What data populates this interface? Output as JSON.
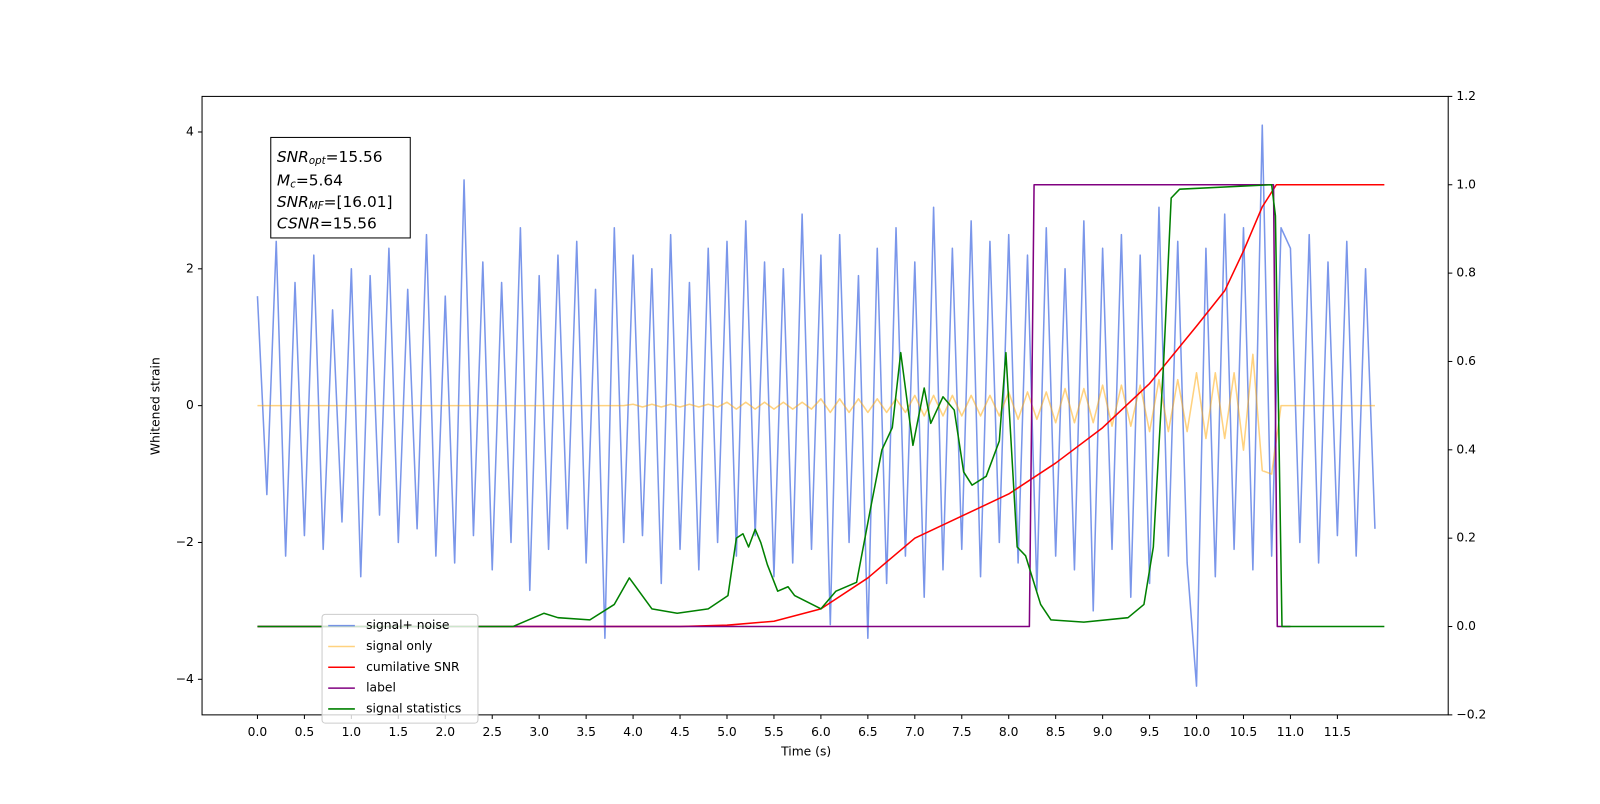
{
  "chart_data": {
    "type": "line",
    "xlabel": "Time (s)",
    "ylabel": "Whitened strain",
    "xlim": [
      -0.59,
      12.68
    ],
    "ylim": [
      -4.52,
      4.52
    ],
    "y2lim": [
      -0.2,
      1.2
    ],
    "xticks": [
      {
        "value": 0,
        "label": "0.0"
      },
      0.5,
      {
        "value": 1,
        "label": "1.0"
      },
      1.5,
      {
        "value": 2,
        "label": "2.0"
      },
      2.5,
      {
        "value": 3,
        "label": "3.0"
      },
      3.5,
      {
        "value": 4,
        "label": "4.0"
      },
      4.5,
      {
        "value": 5,
        "label": "5.0"
      },
      5.5,
      {
        "value": 6,
        "label": "6.0"
      },
      6.5,
      {
        "value": 7,
        "label": "7.0"
      },
      7.5,
      {
        "value": 8,
        "label": "8.0"
      },
      8.5,
      {
        "value": 9,
        "label": "9.0"
      },
      9.5,
      {
        "value": 10,
        "label": "10.0"
      },
      10.5,
      {
        "value": 11,
        "label": "11.0"
      },
      11.5
    ],
    "yticks": [
      {
        "value": -4,
        "label": "−4"
      },
      {
        "value": -2,
        "label": "−2"
      },
      0,
      2,
      4
    ],
    "y2ticks": [
      {
        "value": -0.2,
        "label": "−0.2"
      },
      {
        "value": 0,
        "label": "0.0"
      },
      0.2,
      0.4,
      0.6,
      0.8,
      {
        "value": 1,
        "label": "1.0"
      },
      1.2
    ],
    "legend_loc": "lower left",
    "annotation": [
      {
        "symbol": "SNR",
        "subscript": "opt",
        "text": "=15.56"
      },
      {
        "symbol": "M",
        "subscript": "c",
        "text": "=5.64"
      },
      {
        "symbol": "SNR",
        "subscript": "MF",
        "text": "=[16.01]"
      },
      {
        "symbol": "CSNR",
        "subscript": "",
        "text": "=15.56"
      }
    ],
    "series": [
      {
        "name": "signal+ noise",
        "color": "#4169e1",
        "alpha": 0.7,
        "axis": "y",
        "x": [
          0,
          0.1,
          0.2,
          0.3,
          0.4,
          0.5,
          0.6,
          0.7,
          0.8,
          0.9,
          1,
          1.1,
          1.2,
          1.3,
          1.4,
          1.5,
          1.6,
          1.7,
          1.8,
          1.9,
          2,
          2.1,
          2.2,
          2.3,
          2.4,
          2.5,
          2.6,
          2.7,
          2.8,
          2.9,
          3,
          3.1,
          3.2,
          3.3,
          3.4,
          3.5,
          3.6,
          3.7,
          3.8,
          3.9,
          4,
          4.1,
          4.2,
          4.3,
          4.4,
          4.5,
          4.6,
          4.7,
          4.8,
          4.9,
          5,
          5.1,
          5.2,
          5.3,
          5.4,
          5.5,
          5.6,
          5.7,
          5.8,
          5.9,
          6,
          6.1,
          6.2,
          6.3,
          6.4,
          6.5,
          6.6,
          6.7,
          6.8,
          6.9,
          7,
          7.1,
          7.2,
          7.3,
          7.4,
          7.5,
          7.6,
          7.7,
          7.8,
          7.9,
          8,
          8.1,
          8.2,
          8.3,
          8.4,
          8.5,
          8.6,
          8.7,
          8.8,
          8.9,
          9,
          9.1,
          9.2,
          9.3,
          9.4,
          9.5,
          9.6,
          9.7,
          9.8,
          9.9,
          10,
          10.1,
          10.2,
          10.3,
          10.4,
          10.5,
          10.6,
          10.7,
          10.8,
          10.9,
          11,
          11.1,
          11.2,
          11.3,
          11.4,
          11.5,
          11.6,
          11.7,
          11.8,
          11.9
        ],
        "values": [
          1.6,
          -1.3,
          2.4,
          -2.2,
          1.8,
          -1.9,
          2.2,
          -2.1,
          1.4,
          -1.7,
          2.0,
          -2.5,
          1.9,
          -1.6,
          2.3,
          -2.0,
          1.7,
          -1.8,
          2.5,
          -2.2,
          1.6,
          -2.3,
          3.3,
          -1.9,
          2.1,
          -2.4,
          1.8,
          -2.0,
          2.6,
          -2.7,
          1.9,
          -2.1,
          2.2,
          -1.8,
          2.4,
          -2.3,
          1.7,
          -3.4,
          2.6,
          -2.0,
          2.2,
          -1.9,
          2.0,
          -2.6,
          2.5,
          -2.1,
          1.8,
          -2.4,
          2.3,
          -2.0,
          2.4,
          -2.2,
          2.7,
          -1.9,
          2.1,
          -2.5,
          2.0,
          -2.3,
          2.8,
          -2.1,
          2.2,
          -3.2,
          2.5,
          -2.0,
          1.9,
          -3.4,
          2.3,
          -2.6,
          2.6,
          -2.2,
          2.1,
          -2.8,
          2.9,
          -2.4,
          2.3,
          -2.1,
          2.7,
          -2.5,
          2.4,
          -2.0,
          2.5,
          -2.3,
          2.2,
          -2.7,
          2.6,
          -2.2,
          2.0,
          -2.4,
          2.7,
          -3.0,
          2.3,
          -2.1,
          2.5,
          -2.8,
          2.2,
          -2.6,
          2.9,
          -2.2,
          2.4,
          -2.3,
          -4.1,
          2.3,
          -2.5,
          2.8,
          -2.1,
          2.6,
          -2.4,
          4.1,
          -2.2,
          2.6,
          2.3,
          -2.0,
          2.5,
          -2.3,
          2.1,
          -1.9,
          2.4,
          -2.2,
          2.0,
          -1.8
        ]
      },
      {
        "name": "signal only",
        "color": "#ffa500",
        "alpha": 0.5,
        "axis": "y",
        "x": [
          0,
          0.1,
          0.2,
          0.3,
          0.4,
          0.5,
          0.6,
          0.7,
          0.8,
          0.9,
          1,
          1.1,
          1.2,
          1.3,
          1.4,
          1.5,
          1.6,
          1.7,
          1.8,
          1.9,
          2,
          2.1,
          2.2,
          2.3,
          2.4,
          2.5,
          2.6,
          2.7,
          2.8,
          2.9,
          3,
          3.1,
          3.2,
          3.3,
          3.4,
          3.5,
          3.6,
          3.7,
          3.8,
          3.9,
          4,
          4.1,
          4.2,
          4.3,
          4.4,
          4.5,
          4.6,
          4.7,
          4.8,
          4.9,
          5,
          5.1,
          5.2,
          5.3,
          5.4,
          5.5,
          5.6,
          5.7,
          5.8,
          5.9,
          6,
          6.1,
          6.2,
          6.3,
          6.4,
          6.5,
          6.6,
          6.7,
          6.8,
          6.9,
          7,
          7.1,
          7.2,
          7.3,
          7.4,
          7.5,
          7.6,
          7.7,
          7.8,
          7.9,
          8,
          8.1,
          8.2,
          8.3,
          8.4,
          8.5,
          8.6,
          8.7,
          8.8,
          8.9,
          9,
          9.1,
          9.2,
          9.3,
          9.4,
          9.5,
          9.6,
          9.7,
          9.8,
          9.9,
          10,
          10.1,
          10.2,
          10.3,
          10.4,
          10.5,
          10.6,
          10.7,
          10.8,
          10.9,
          11,
          11.1,
          11.2,
          11.3,
          11.4,
          11.5,
          11.6,
          11.7,
          11.8,
          11.9
        ],
        "values": [
          0,
          0,
          0,
          0,
          0,
          0,
          0,
          0,
          0,
          0,
          0,
          0,
          0,
          0,
          0,
          0,
          0,
          0,
          0,
          0,
          0,
          0,
          0,
          0,
          0,
          0,
          0,
          0,
          0,
          0,
          0,
          0,
          0,
          0,
          0,
          0,
          0,
          0,
          0,
          0,
          0.02,
          -0.02,
          0.02,
          -0.02,
          0.02,
          -0.02,
          0.02,
          -0.02,
          0.02,
          -0.02,
          0.05,
          -0.05,
          0.05,
          -0.05,
          0.05,
          -0.05,
          0.05,
          -0.05,
          0.05,
          -0.05,
          0.1,
          -0.1,
          0.1,
          -0.1,
          0.1,
          -0.1,
          0.1,
          -0.1,
          0.1,
          -0.1,
          0.15,
          -0.15,
          0.15,
          -0.15,
          0.15,
          -0.15,
          0.15,
          -0.15,
          0.15,
          -0.15,
          0.2,
          -0.2,
          0.2,
          -0.2,
          0.2,
          -0.25,
          0.25,
          -0.25,
          0.25,
          -0.25,
          0.3,
          -0.3,
          0.3,
          -0.3,
          0.3,
          -0.38,
          0.38,
          -0.38,
          0.38,
          -0.38,
          0.48,
          -0.48,
          0.48,
          -0.48,
          0.48,
          -0.65,
          0.75,
          -0.95,
          -1.0,
          0,
          0,
          0,
          0,
          0,
          0,
          0,
          0,
          0,
          0,
          0
        ]
      },
      {
        "name": "cumilative SNR",
        "color": "#ff0000",
        "alpha": 1,
        "axis": "y2",
        "x": [
          0,
          4.5,
          5.0,
          5.5,
          6.0,
          6.5,
          7.0,
          7.5,
          8.0,
          8.5,
          9.0,
          9.5,
          10.0,
          10.3,
          10.5,
          10.7,
          10.85,
          12.0
        ],
        "values": [
          0,
          0,
          0.003,
          0.012,
          0.04,
          0.11,
          0.2,
          0.25,
          0.3,
          0.37,
          0.45,
          0.55,
          0.68,
          0.76,
          0.85,
          0.95,
          1.0,
          1.0
        ]
      },
      {
        "name": "label",
        "color": "#800080",
        "alpha": 1,
        "axis": "y2",
        "x": [
          0,
          8.22,
          8.27,
          10.82,
          10.86,
          11.0
        ],
        "values": [
          0,
          0,
          1,
          1,
          0,
          0
        ]
      },
      {
        "name": "signal statistics",
        "color": "#008000",
        "alpha": 1,
        "axis": "y2",
        "x": [
          0,
          2.72,
          3.05,
          3.2,
          3.54,
          3.8,
          3.96,
          4.2,
          4.47,
          4.8,
          5.01,
          5.1,
          5.17,
          5.23,
          5.3,
          5.36,
          5.43,
          5.54,
          5.65,
          5.72,
          6.0,
          6.16,
          6.38,
          6.54,
          6.65,
          6.76,
          6.85,
          6.98,
          7.1,
          7.17,
          7.3,
          7.42,
          7.52,
          7.61,
          7.76,
          7.9,
          7.97,
          8.09,
          8.18,
          8.34,
          8.45,
          8.8,
          9.27,
          9.44,
          9.54,
          9.65,
          9.73,
          9.82,
          10.8,
          10.84,
          10.91,
          12.0
        ],
        "values": [
          0,
          0,
          0.03,
          0.02,
          0.015,
          0.05,
          0.11,
          0.04,
          0.03,
          0.04,
          0.07,
          0.2,
          0.21,
          0.18,
          0.22,
          0.19,
          0.14,
          0.08,
          0.09,
          0.07,
          0.04,
          0.08,
          0.1,
          0.28,
          0.4,
          0.45,
          0.62,
          0.41,
          0.54,
          0.46,
          0.52,
          0.49,
          0.35,
          0.32,
          0.34,
          0.42,
          0.62,
          0.18,
          0.16,
          0.05,
          0.015,
          0.01,
          0.02,
          0.05,
          0.18,
          0.6,
          0.97,
          0.99,
          1.0,
          0.93,
          0,
          0
        ]
      }
    ]
  }
}
